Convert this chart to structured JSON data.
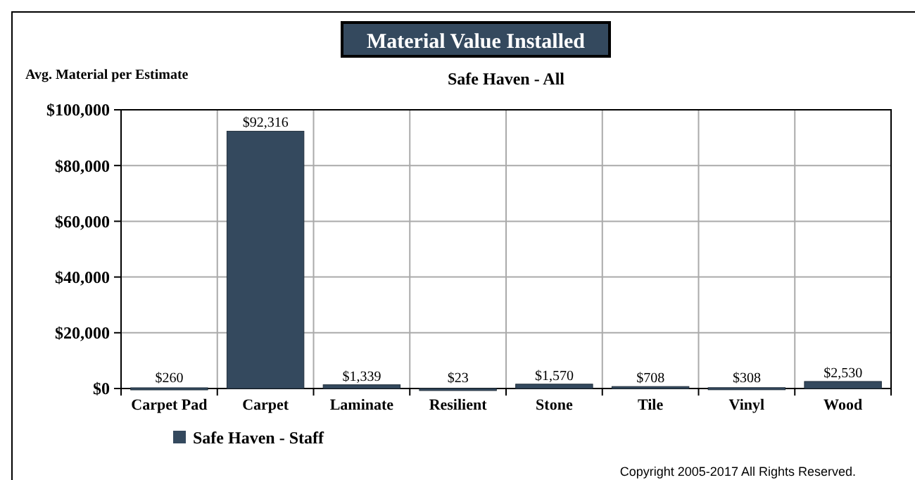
{
  "chart_data": {
    "type": "bar",
    "title": "Material Value Installed",
    "subtitle": "Safe Haven - All",
    "ylabel": "Avg. Material per Estimate",
    "categories": [
      "Carpet Pad",
      "Carpet",
      "Laminate",
      "Resilient",
      "Stone",
      "Tile",
      "Vinyl",
      "Wood"
    ],
    "series": [
      {
        "name": "Safe Haven - Staff",
        "color": "#34495e",
        "values": [
          260,
          92316,
          1339,
          23,
          1570,
          708,
          308,
          2530
        ]
      }
    ],
    "value_labels": [
      "$260",
      "$92,316",
      "$1,339",
      "$23",
      "$1,570",
      "$708",
      "$308",
      "$2,530"
    ],
    "ylim": [
      0,
      100000
    ],
    "yticks": [
      {
        "value": 0,
        "label": "$0"
      },
      {
        "value": 20000,
        "label": "$20,000"
      },
      {
        "value": 40000,
        "label": "$40,000"
      },
      {
        "value": 60000,
        "label": "$60,000"
      },
      {
        "value": 80000,
        "label": "$80,000"
      },
      {
        "value": 100000,
        "label": "$100,000"
      }
    ],
    "grid": true,
    "legend": "bottom left",
    "annotations": [
      "Copyright 2005-2017 All Rights Reserved."
    ]
  }
}
